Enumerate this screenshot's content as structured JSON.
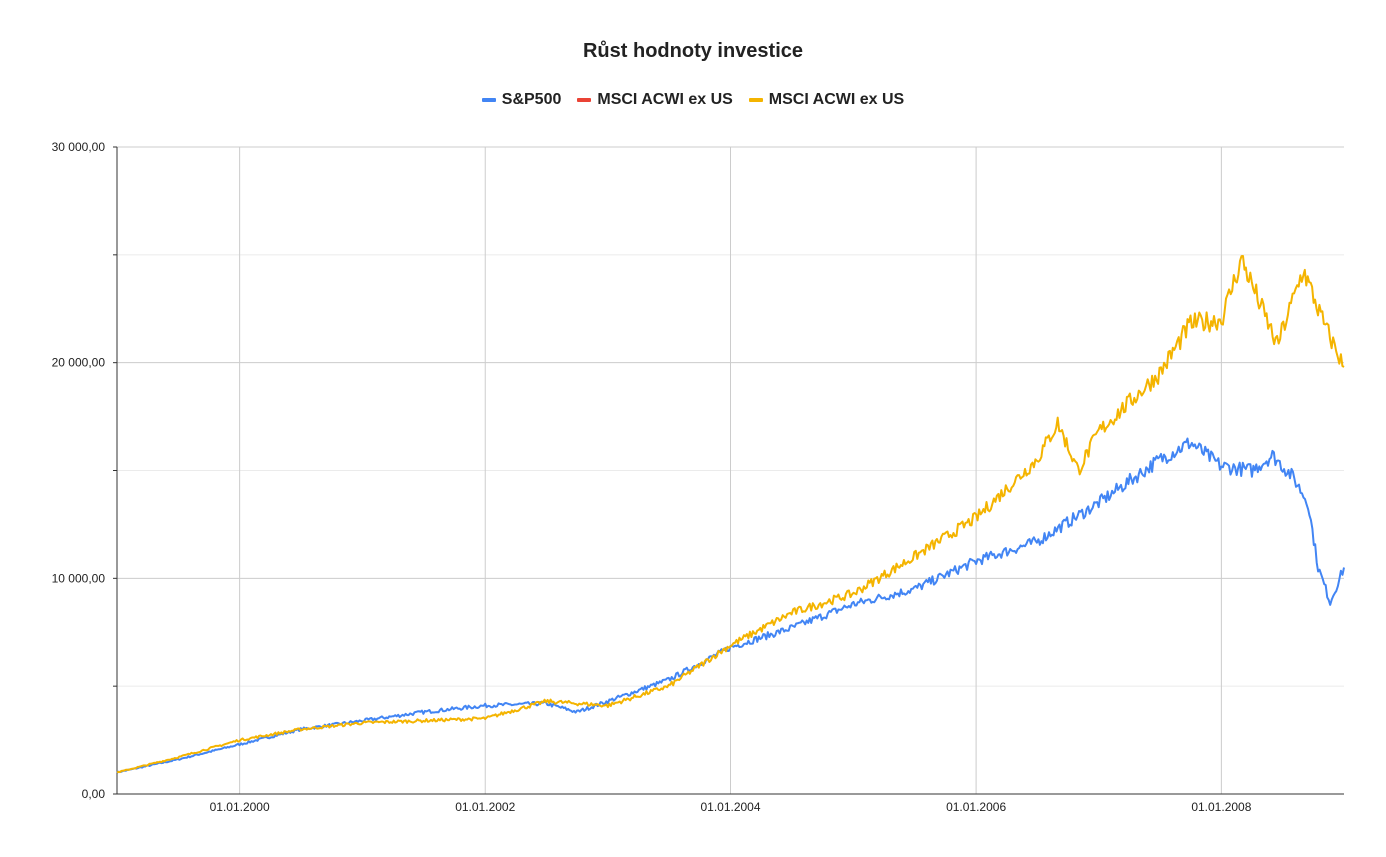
{
  "chart_data": {
    "type": "line",
    "title": "Růst hodnoty investice",
    "xlabel": "",
    "ylabel": "",
    "legend_position": "top",
    "grid": true,
    "x_range": [
      "1999-01-01",
      "2008-12-31"
    ],
    "ylim": [
      0,
      30000
    ],
    "y_ticks": [
      "0,00",
      "10 000,00",
      "20 000,00",
      "30 000,00"
    ],
    "x_ticks": [
      "01.01.2000",
      "01.01.2002",
      "01.01.2004",
      "01.01.2006",
      "01.01.2008"
    ],
    "series": [
      {
        "name": "S&P500",
        "color": "#4285f4",
        "points": [
          [
            "1999-01-01",
            1000
          ],
          [
            "1999-07-01",
            1600
          ],
          [
            "2000-01-01",
            2300
          ],
          [
            "2000-07-01",
            3000
          ],
          [
            "2001-01-01",
            3400
          ],
          [
            "2001-07-01",
            3800
          ],
          [
            "2002-01-01",
            4100
          ],
          [
            "2002-07-01",
            4200
          ],
          [
            "2002-10-01",
            3800
          ],
          [
            "2003-01-01",
            4300
          ],
          [
            "2003-07-01",
            5300
          ],
          [
            "2004-01-01",
            6800
          ],
          [
            "2004-07-01",
            7700
          ],
          [
            "2005-01-01",
            8800
          ],
          [
            "2005-07-01",
            9500
          ],
          [
            "2006-01-01",
            10800
          ],
          [
            "2006-07-01",
            11700
          ],
          [
            "2007-01-01",
            13500
          ],
          [
            "2007-07-01",
            15500
          ],
          [
            "2007-10-01",
            16300
          ],
          [
            "2008-01-01",
            15200
          ],
          [
            "2008-04-01",
            15000
          ],
          [
            "2008-06-01",
            15700
          ],
          [
            "2008-08-01",
            14700
          ],
          [
            "2008-09-15",
            13500
          ],
          [
            "2008-10-15",
            10500
          ],
          [
            "2008-11-20",
            8900
          ],
          [
            "2008-12-31",
            10500
          ]
        ]
      },
      {
        "name": "MSCI ACWI ex US",
        "color": "#ea4335",
        "points": []
      },
      {
        "name": "MSCI ACWI ex US",
        "color": "#f4b400",
        "points": [
          [
            "1999-01-01",
            1000
          ],
          [
            "1999-07-01",
            1700
          ],
          [
            "2000-01-01",
            2500
          ],
          [
            "2000-07-01",
            3000
          ],
          [
            "2001-01-01",
            3300
          ],
          [
            "2001-07-01",
            3400
          ],
          [
            "2002-01-01",
            3500
          ],
          [
            "2002-07-01",
            4300
          ],
          [
            "2003-01-01",
            4100
          ],
          [
            "2003-07-01",
            5000
          ],
          [
            "2004-01-01",
            6900
          ],
          [
            "2004-07-01",
            8400
          ],
          [
            "2005-01-01",
            9300
          ],
          [
            "2005-07-01",
            11000
          ],
          [
            "2006-01-01",
            12800
          ],
          [
            "2006-07-01",
            15500
          ],
          [
            "2006-09-01",
            17200
          ],
          [
            "2006-11-01",
            15000
          ],
          [
            "2007-01-01",
            16800
          ],
          [
            "2007-07-01",
            19500
          ],
          [
            "2007-10-01",
            21800
          ],
          [
            "2008-01-01",
            22000
          ],
          [
            "2008-03-01",
            24800
          ],
          [
            "2008-05-01",
            22500
          ],
          [
            "2008-06-15",
            20800
          ],
          [
            "2008-09-01",
            24300
          ],
          [
            "2008-11-01",
            21800
          ],
          [
            "2008-12-31",
            19800
          ]
        ]
      }
    ]
  }
}
